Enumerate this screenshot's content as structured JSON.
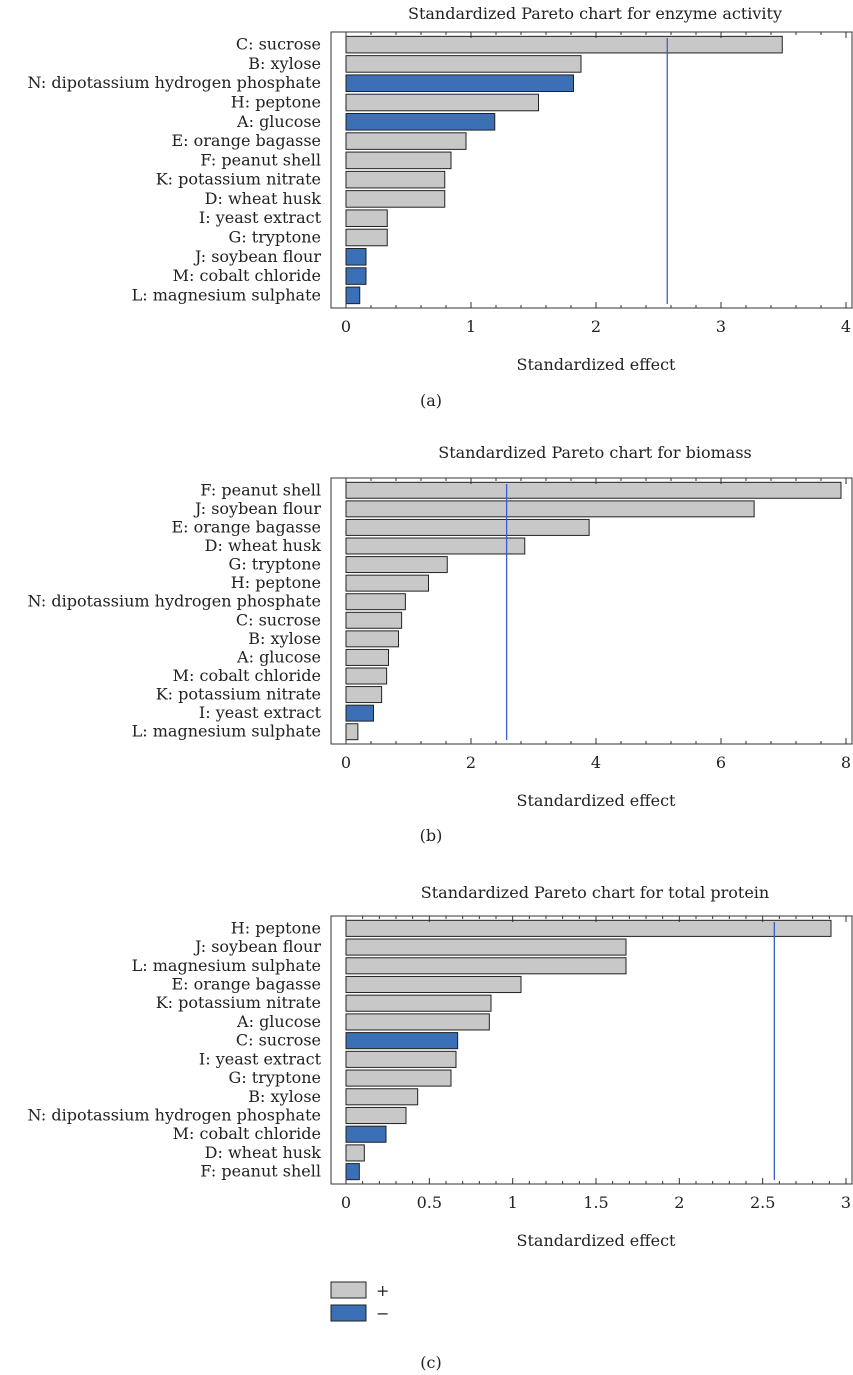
{
  "chart_data": [
    {
      "type": "bar",
      "orientation": "horizontal",
      "panel_label": "(a)",
      "title": "Standardized Pareto chart for enzyme activity",
      "xlabel": "Standardized effect",
      "ylabel": "",
      "xlim": [
        0,
        4
      ],
      "xticks": [
        0,
        1,
        2,
        3,
        4
      ],
      "xtick_labels": [
        "0",
        "1",
        "2",
        "3",
        "4"
      ],
      "reference_line": 2.57,
      "grid": false,
      "categories": [
        "C: sucrose",
        "B: xylose",
        "N: dipotassium hydrogen phosphate",
        "H: peptone",
        "A: glucose",
        "E: orange bagasse",
        "F: peanut shell",
        "K: potassium nitrate",
        "D: wheat husk",
        "I: yeast extract",
        "G: tryptone",
        "J: soybean flour",
        "M: cobalt chloride",
        "L: magnesium sulphate"
      ],
      "values": [
        3.49,
        1.88,
        1.82,
        1.54,
        1.19,
        0.96,
        0.84,
        0.79,
        0.79,
        0.33,
        0.33,
        0.16,
        0.16,
        0.11
      ],
      "signs": [
        "+",
        "+",
        "-",
        "+",
        "-",
        "+",
        "+",
        "+",
        "+",
        "+",
        "+",
        "-",
        "-",
        "-"
      ]
    },
    {
      "type": "bar",
      "orientation": "horizontal",
      "panel_label": "(b)",
      "title": "Standardized Pareto chart for biomass",
      "xlabel": "Standardized effect",
      "ylabel": "",
      "xlim": [
        0,
        8
      ],
      "xticks": [
        0,
        2,
        4,
        6,
        8
      ],
      "xtick_labels": [
        "0",
        "2",
        "4",
        "6",
        "8"
      ],
      "reference_line": 2.57,
      "grid": false,
      "categories": [
        "F: peanut shell",
        "J: soybean flour",
        "E: orange bagasse",
        "D: wheat husk",
        "G: tryptone",
        "H: peptone",
        "N: dipotassium hydrogen phosphate",
        "C: sucrose",
        "B: xylose",
        "A: glucose",
        "M: cobalt chloride",
        "K: potassium nitrate",
        "I: yeast extract",
        "L: magnesium sulphate"
      ],
      "values": [
        7.92,
        6.53,
        3.89,
        2.86,
        1.62,
        1.32,
        0.95,
        0.89,
        0.84,
        0.68,
        0.65,
        0.57,
        0.44,
        0.19
      ],
      "signs": [
        "+",
        "+",
        "+",
        "+",
        "+",
        "+",
        "+",
        "+",
        "+",
        "+",
        "+",
        "+",
        "-",
        "+"
      ]
    },
    {
      "type": "bar",
      "orientation": "horizontal",
      "panel_label": "(c)",
      "title": "Standardized Pareto chart for total protein",
      "xlabel": "Standardized effect",
      "ylabel": "",
      "xlim": [
        0,
        3
      ],
      "xticks": [
        0,
        0.5,
        1,
        1.5,
        2,
        2.5,
        3
      ],
      "xtick_labels": [
        "0",
        "0.5",
        "1",
        "1.5",
        "2",
        "2.5",
        "3"
      ],
      "reference_line": 2.57,
      "grid": false,
      "categories": [
        "H: peptone",
        "J: soybean flour",
        "L: magnesium sulphate",
        "E: orange bagasse",
        "K: potassium nitrate",
        "A: glucose",
        "C: sucrose",
        "I: yeast extract",
        "G: tryptone",
        "B: xylose",
        "N: dipotassium hydrogen phosphate",
        "M: cobalt chloride",
        "D: wheat husk",
        "F: peanut shell"
      ],
      "values": [
        2.91,
        1.68,
        1.68,
        1.05,
        0.87,
        0.86,
        0.67,
        0.66,
        0.63,
        0.43,
        0.36,
        0.24,
        0.11,
        0.08
      ],
      "signs": [
        "+",
        "+",
        "+",
        "+",
        "+",
        "+",
        "-",
        "+",
        "+",
        "+",
        "+",
        "-",
        "+",
        "-"
      ]
    }
  ],
  "legend": {
    "placement": "bottom-left",
    "items": [
      {
        "sign": "+",
        "label": "+",
        "color": "#c8c8c8"
      },
      {
        "sign": "-",
        "label": "−",
        "color": "#3b6fb6"
      }
    ]
  },
  "colors": {
    "positive": "#c8c8c8",
    "negative": "#3b6fb6",
    "reference_line": "#3a5fc8",
    "bar_edge": "#222222",
    "axis": "#333333"
  }
}
